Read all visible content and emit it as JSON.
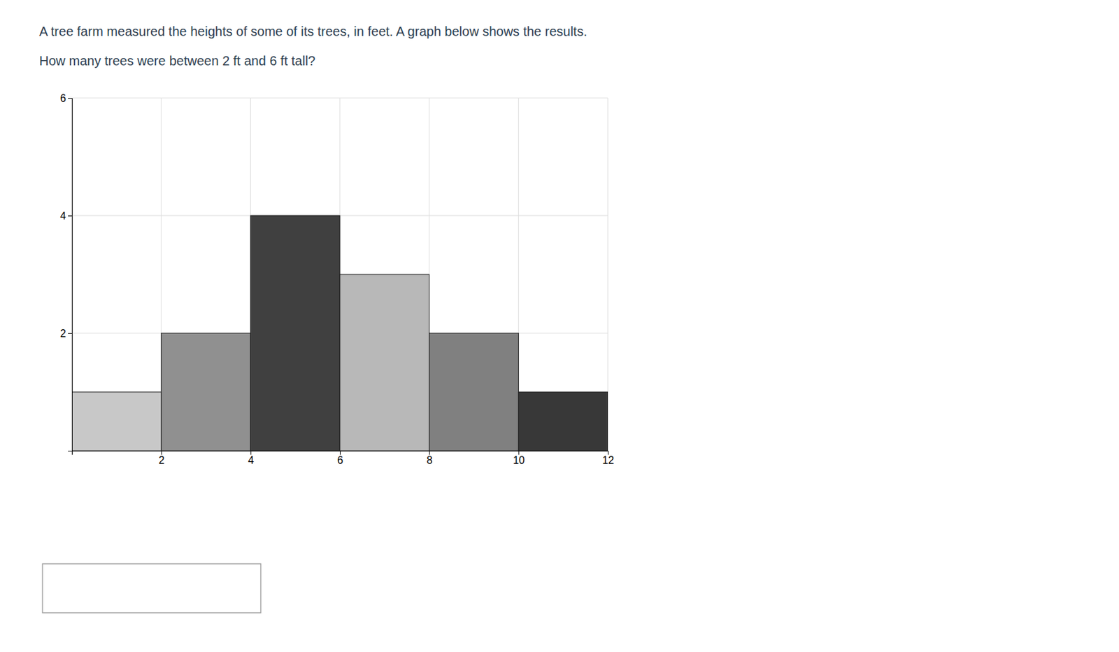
{
  "chart_data": {
    "type": "histogram",
    "title": "A tree farm measured the heights of some of its trees, in feet.  A graph below shows the results.",
    "subtitle": "How many trees were between 2 ft and 6 ft tall?",
    "bins": [
      0,
      2,
      4,
      6,
      8,
      10,
      12
    ],
    "values": [
      1,
      2,
      4,
      3,
      2,
      1
    ],
    "colors": [
      "#c8c8c8",
      "#909090",
      "#404040",
      "#b8b8b8",
      "#808080",
      "#383838"
    ],
    "xlim": [
      0,
      12
    ],
    "ylim": [
      0,
      6
    ],
    "xticks": [
      2,
      4,
      6,
      8,
      10,
      12
    ],
    "yticks": [
      2,
      4,
      6
    ],
    "grid": true
  }
}
